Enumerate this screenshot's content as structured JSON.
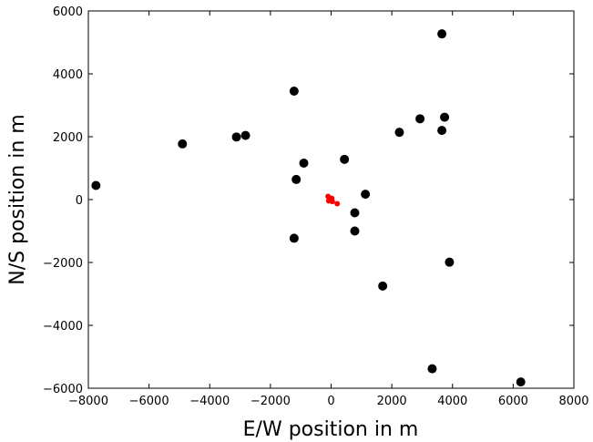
{
  "chart_data": {
    "type": "scatter",
    "title": "",
    "xlabel": "E/W position in m",
    "ylabel": "N/S position in m",
    "xlim": [
      -8000,
      8000
    ],
    "ylim": [
      -6000,
      6000
    ],
    "x_ticks": [
      -8000,
      -6000,
      -4000,
      -2000,
      0,
      2000,
      4000,
      6000,
      8000
    ],
    "y_ticks": [
      -6000,
      -4000,
      -2000,
      0,
      2000,
      4000,
      6000
    ],
    "x_tick_labels": [
      "−8000",
      "−6000",
      "−4000",
      "−2000",
      "0",
      "2000",
      "4000",
      "6000",
      "8000"
    ],
    "y_tick_labels": [
      "−6000",
      "−4000",
      "−2000",
      "0",
      "2000",
      "4000",
      "6000"
    ],
    "grid": false,
    "series": [
      {
        "color": "#000000",
        "marker": "circle-large",
        "points": [
          {
            "x": -7750,
            "y": 450
          },
          {
            "x": -4900,
            "y": 1770
          },
          {
            "x": -3120,
            "y": 1990
          },
          {
            "x": -2820,
            "y": 2040
          },
          {
            "x": -1220,
            "y": 3450
          },
          {
            "x": -1150,
            "y": 640
          },
          {
            "x": -900,
            "y": 1160
          },
          {
            "x": -1220,
            "y": -1230
          },
          {
            "x": 440,
            "y": 1280
          },
          {
            "x": 1130,
            "y": 170
          },
          {
            "x": 780,
            "y": -420
          },
          {
            "x": 780,
            "y": -1000
          },
          {
            "x": 1700,
            "y": -2750
          },
          {
            "x": 2250,
            "y": 2140
          },
          {
            "x": 2930,
            "y": 2570
          },
          {
            "x": 3650,
            "y": 2200
          },
          {
            "x": 3740,
            "y": 2620
          },
          {
            "x": 3650,
            "y": 5270
          },
          {
            "x": 3900,
            "y": -1990
          },
          {
            "x": 3330,
            "y": -5380
          },
          {
            "x": 6250,
            "y": -5800
          }
        ]
      },
      {
        "color": "#ff0000",
        "marker": "circle-small",
        "points": [
          {
            "x": -100,
            "y": 100
          },
          {
            "x": -50,
            "y": 30
          },
          {
            "x": 20,
            "y": 40
          },
          {
            "x": -80,
            "y": -40
          },
          {
            "x": 40,
            "y": -60
          },
          {
            "x": 200,
            "y": -130
          }
        ]
      }
    ]
  }
}
